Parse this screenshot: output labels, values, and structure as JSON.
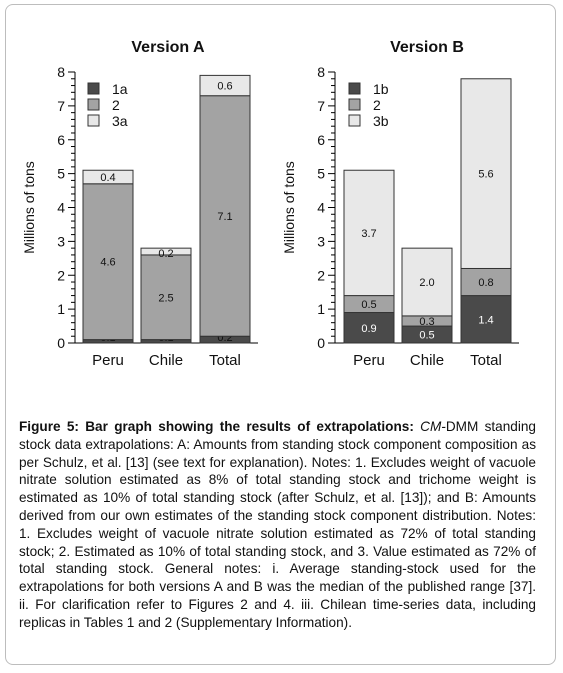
{
  "chart_data": [
    {
      "type": "bar",
      "stacked": true,
      "title": "Version A",
      "ylabel": "Millions of tons",
      "xlabel": "",
      "ylim": [
        0,
        8
      ],
      "yticks": [
        "0",
        "1",
        "2",
        "3",
        "4",
        "5",
        "6",
        "7",
        "8"
      ],
      "categories": [
        "Peru",
        "Chile",
        "Total"
      ],
      "series": [
        {
          "name": "1a",
          "color": "#4a4a4a",
          "values": [
            0.1,
            0.1,
            0.2
          ],
          "labels": [
            "0.1",
            "0.1",
            "0.2"
          ]
        },
        {
          "name": "2",
          "color": "#a3a3a3",
          "values": [
            4.6,
            2.5,
            7.1
          ],
          "labels": [
            "4.6",
            "2.5",
            "7.1"
          ]
        },
        {
          "name": "3a",
          "color": "#e8e8e8",
          "values": [
            0.4,
            0.2,
            0.6
          ],
          "labels": [
            "0.4",
            "0.2",
            "0.6"
          ]
        }
      ],
      "legend": "top-left"
    },
    {
      "type": "bar",
      "stacked": true,
      "title": "Version B",
      "ylabel": "Millions of tons",
      "xlabel": "",
      "ylim": [
        0,
        8
      ],
      "yticks": [
        "0",
        "1",
        "2",
        "3",
        "4",
        "5",
        "6",
        "7",
        "8"
      ],
      "categories": [
        "Peru",
        "Chile",
        "Total"
      ],
      "series": [
        {
          "name": "1b",
          "color": "#4a4a4a",
          "values": [
            0.9,
            0.5,
            1.4
          ],
          "labels": [
            "0.9",
            "0.5",
            "1.4"
          ]
        },
        {
          "name": "2",
          "color": "#a3a3a3",
          "values": [
            0.5,
            0.3,
            0.8
          ],
          "labels": [
            "0.5",
            "0.3",
            "0.8"
          ]
        },
        {
          "name": "3b",
          "color": "#e8e8e8",
          "values": [
            3.7,
            2.0,
            5.6
          ],
          "labels": [
            "3.7",
            "2.0",
            "5.6"
          ]
        }
      ],
      "legend": "top-left"
    }
  ],
  "caption": {
    "label": "Figure 5: Bar graph showing the results of extrapolations:",
    "text": "DMM standing stock data extrapolations: A: Amounts from standing stock component composition as per Schulz, et al. [13] (see text for explanation). Notes: 1. Excludes weight of vacuole nitrate solution estimated as 8% of total standing stock and trichome weight is estimated as 10% of total standing stock (after Schulz, et al. [13]); and B: Amounts derived from our own estimates of the standing stock component distribution. Notes: 1. Excludes weight of vacuole nitrate solution estimated as 72% of total standing stock; 2. Estimated as 10% of total standing stock, and 3. Value estimated as 72% of total standing stock. General notes: i. Average standing-stock used for the extrapolations for both versions A and B was the median of the published range [37]. ii. For clarification refer to Figures 2 and 4. iii. Chilean time-series data, including replicas in Tables 1 and 2 (Supplementary Information).",
    "cm_prefix": "CM-"
  }
}
